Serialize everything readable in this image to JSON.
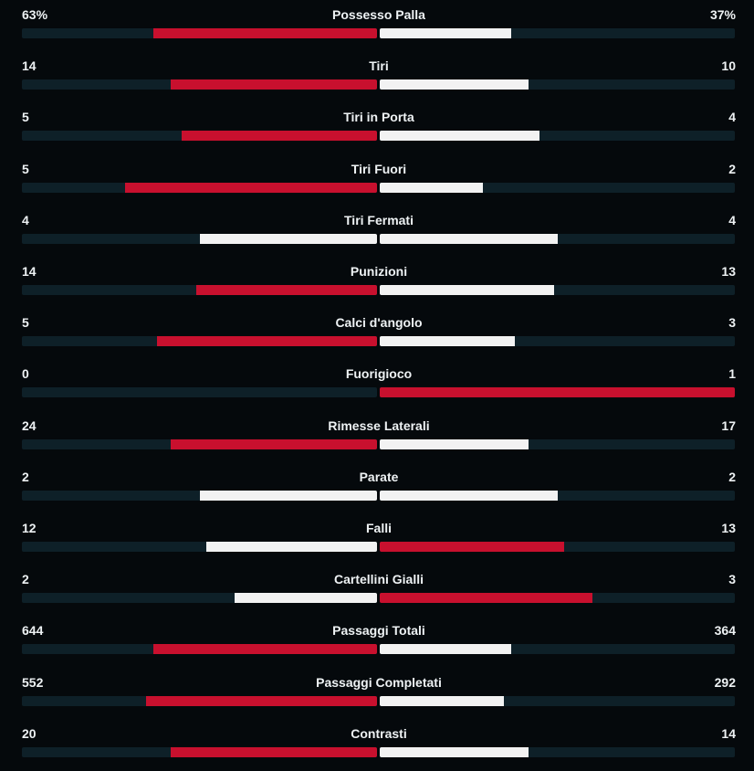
{
  "colors": {
    "background": "#05090c",
    "track": "#0e2028",
    "leader": "#c8102e",
    "other": "#f2f2f2"
  },
  "stats": [
    {
      "label": "Possesso Palla",
      "home": "63%",
      "away": "37%",
      "home_share": 0.63,
      "away_share": 0.37
    },
    {
      "label": "Tiri",
      "home": "14",
      "away": "10",
      "home_share": 0.58,
      "away_share": 0.42
    },
    {
      "label": "Tiri in Porta",
      "home": "5",
      "away": "4",
      "home_share": 0.55,
      "away_share": 0.45
    },
    {
      "label": "Tiri Fuori",
      "home": "5",
      "away": "2",
      "home_share": 0.71,
      "away_share": 0.29
    },
    {
      "label": "Tiri Fermati",
      "home": "4",
      "away": "4",
      "home_share": 0.5,
      "away_share": 0.5
    },
    {
      "label": "Punizioni",
      "home": "14",
      "away": "13",
      "home_share": 0.51,
      "away_share": 0.49
    },
    {
      "label": "Calci d'angolo",
      "home": "5",
      "away": "3",
      "home_share": 0.62,
      "away_share": 0.38
    },
    {
      "label": "Fuorigioco",
      "home": "0",
      "away": "1",
      "home_share": 0.0,
      "away_share": 1.0
    },
    {
      "label": "Rimesse Laterali",
      "home": "24",
      "away": "17",
      "home_share": 0.58,
      "away_share": 0.42
    },
    {
      "label": "Parate",
      "home": "2",
      "away": "2",
      "home_share": 0.5,
      "away_share": 0.5
    },
    {
      "label": "Falli",
      "home": "12",
      "away": "13",
      "home_share": 0.48,
      "away_share": 0.52
    },
    {
      "label": "Cartellini Gialli",
      "home": "2",
      "away": "3",
      "home_share": 0.4,
      "away_share": 0.6
    },
    {
      "label": "Passaggi Totali",
      "home": "644",
      "away": "364",
      "home_share": 0.63,
      "away_share": 0.37
    },
    {
      "label": "Passaggi Completati",
      "home": "552",
      "away": "292",
      "home_share": 0.65,
      "away_share": 0.35
    },
    {
      "label": "Contrasti",
      "home": "20",
      "away": "14",
      "home_share": 0.58,
      "away_share": 0.42
    }
  ]
}
